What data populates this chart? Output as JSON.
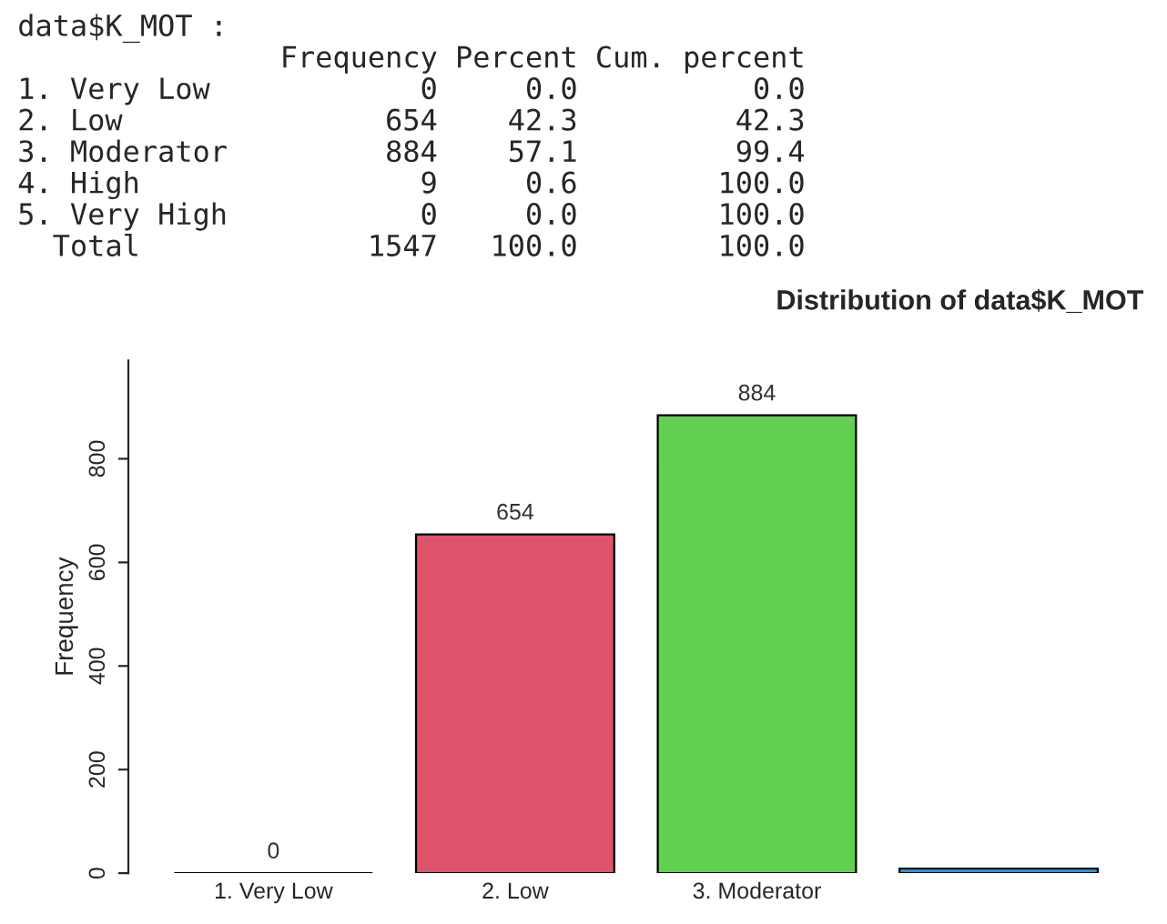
{
  "chart_data": {
    "type": "bar",
    "title": "Distribution of data$K_MOT",
    "ylabel": "Frequency",
    "categories": [
      "1. Very Low",
      "2. Low",
      "3. Moderator",
      null
    ],
    "values": [
      0,
      654,
      884,
      9
    ],
    "colors": [
      "#000000",
      "#df536b",
      "#61d04f",
      "#2297e6"
    ],
    "value_labels": [
      "0",
      "654",
      "884",
      null
    ],
    "ylim": [
      0,
      990
    ],
    "yticks": [
      0,
      200,
      400,
      600,
      800
    ],
    "grid": false,
    "legend": false,
    "annotations": [
      "data$K_MOT :",
      "               Frequency Percent Cum. percent",
      "1. Very Low            0     0.0          0.0",
      "2. Low               654    42.3         42.3",
      "3. Moderator         884    57.1         99.4",
      "4. High                9     0.6        100.0",
      "5. Very High           0     0.0        100.0",
      "  Total             1547   100.0        100.0"
    ]
  }
}
